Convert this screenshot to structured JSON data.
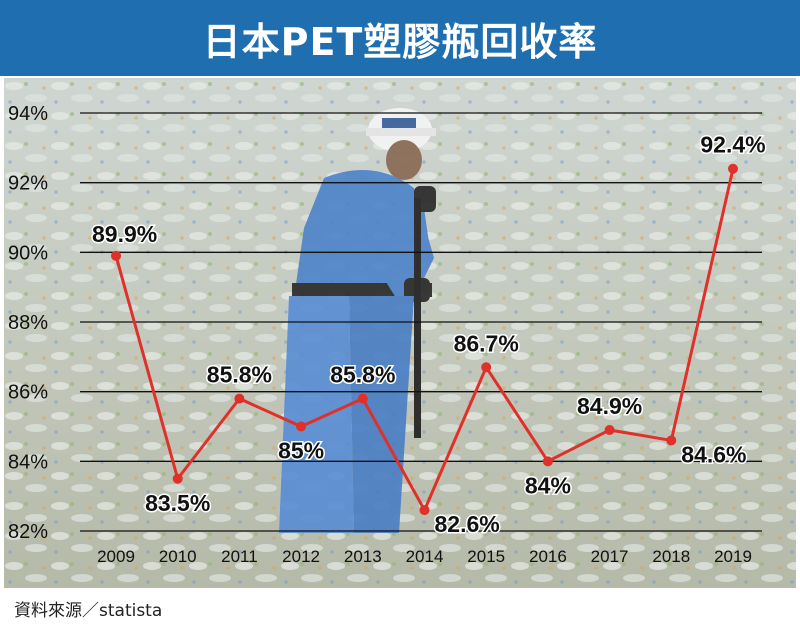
{
  "header": {
    "title": "日本PET塑膠瓶回收率"
  },
  "footer": {
    "source": "資料來源／statista"
  },
  "colors": {
    "title_bar": "#1f6fb0",
    "line": "#e0302a",
    "grid": "#111111"
  },
  "background": {
    "description_icon": "worker-in-bottle-pile-photo"
  },
  "chart_data": {
    "type": "line",
    "title": "日本PET塑膠瓶回收率",
    "xlabel": "",
    "ylabel": "",
    "categories": [
      "2009",
      "2010",
      "2011",
      "2012",
      "2013",
      "2014",
      "2015",
      "2016",
      "2017",
      "2018",
      "2019"
    ],
    "values": [
      89.9,
      83.5,
      85.8,
      85,
      85.8,
      82.6,
      86.7,
      84,
      84.9,
      84.6,
      92.4
    ],
    "data_labels": [
      "89.9%",
      "83.5%",
      "85.8%",
      "85%",
      "85.8%",
      "82.6%",
      "86.7%",
      "84%",
      "84.9%",
      "84.6%",
      "92.4%"
    ],
    "label_pos": [
      "above",
      "below",
      "above",
      "below",
      "above",
      "right",
      "above",
      "below",
      "above",
      "right",
      "above"
    ],
    "ylim": [
      82,
      94
    ],
    "yticks": [
      82,
      84,
      86,
      88,
      90,
      92,
      94
    ],
    "ytick_labels": [
      "82%",
      "84%",
      "86%",
      "88%",
      "90%",
      "92%",
      "94%"
    ],
    "grid": true
  }
}
